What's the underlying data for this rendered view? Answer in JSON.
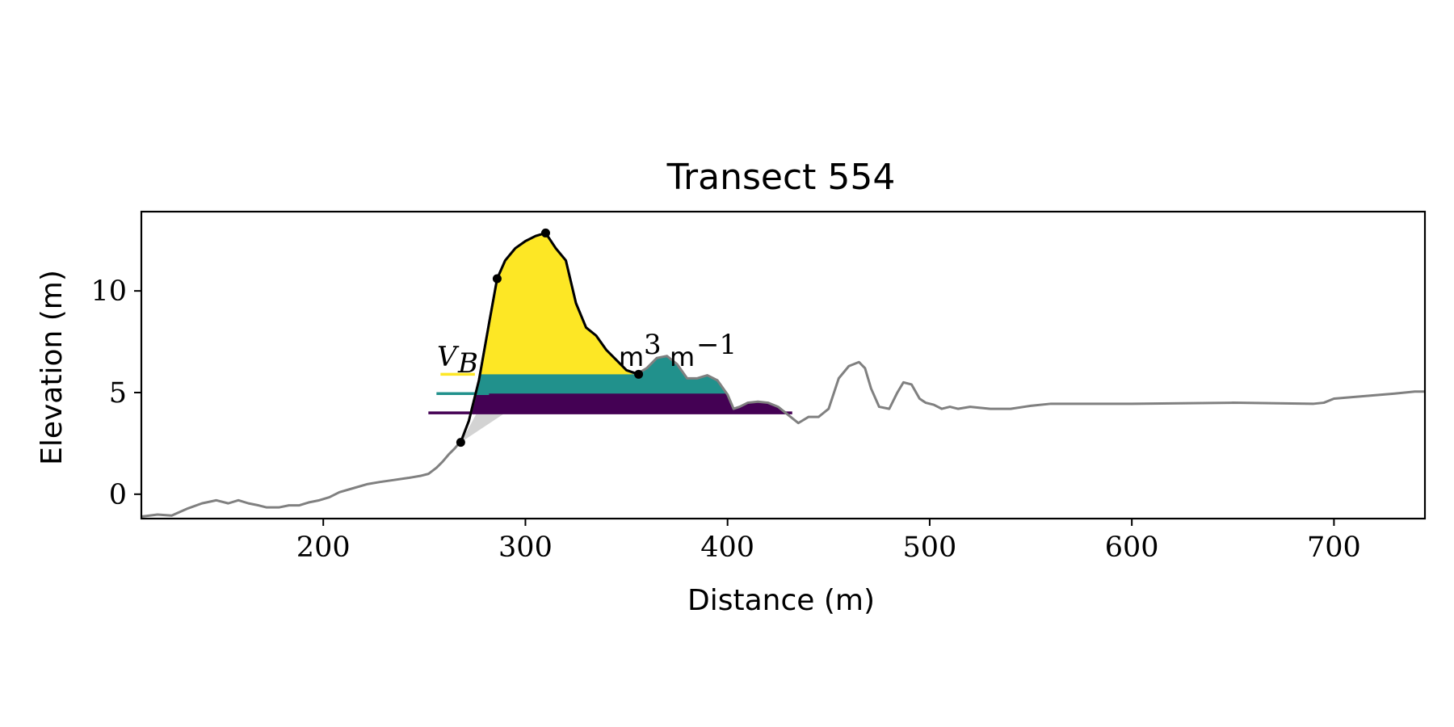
{
  "chart_data": {
    "type": "line",
    "title": "Transect 554",
    "xlabel": "Distance (m)",
    "ylabel": "Elevation (m)",
    "xlim": [
      110,
      745
    ],
    "ylim": [
      -1.2,
      13.9
    ],
    "xticks": [
      200,
      300,
      400,
      500,
      600,
      700
    ],
    "yticks": [
      0,
      5,
      10
    ],
    "grid": false,
    "colors": {
      "profile": "#808080",
      "dune_outline": "#000000",
      "toe_wedge": "#d3d3d3",
      "band_upper": "#fde725",
      "band_middle": "#21918c",
      "band_lower": "#440154"
    },
    "annotation": {
      "symbol": "V",
      "subscript": "B",
      "units_text": "m",
      "units_power_1": "3",
      "units_text_2": "m",
      "units_power_2": "−1"
    },
    "profile": {
      "x": [
        110,
        118,
        125,
        133,
        140,
        147,
        153,
        158,
        163,
        168,
        172,
        178,
        183,
        188,
        193,
        198,
        203,
        208,
        215,
        222,
        228,
        235,
        242,
        248,
        252,
        256,
        259,
        262,
        265,
        268,
        272,
        277,
        282,
        286,
        290,
        295,
        300,
        305,
        310,
        315,
        320,
        325,
        330,
        335,
        340,
        345,
        350,
        355,
        360,
        365,
        370,
        375,
        380,
        385,
        390,
        395,
        400,
        403,
        406,
        410,
        415,
        420,
        425,
        430,
        435,
        440,
        445,
        450,
        455,
        460,
        465,
        468,
        471,
        475,
        480,
        484,
        487,
        491,
        495,
        498,
        502,
        506,
        510,
        514,
        520,
        530,
        540,
        550,
        560,
        600,
        650,
        690,
        695,
        700,
        730,
        740,
        745
      ],
      "y": [
        -1.1,
        -1.0,
        -1.05,
        -0.7,
        -0.45,
        -0.3,
        -0.45,
        -0.3,
        -0.45,
        -0.55,
        -0.65,
        -0.65,
        -0.55,
        -0.55,
        -0.4,
        -0.3,
        -0.15,
        0.1,
        0.3,
        0.5,
        0.6,
        0.7,
        0.8,
        0.9,
        1.0,
        1.3,
        1.6,
        1.95,
        2.25,
        2.6,
        3.6,
        5.6,
        8.4,
        10.6,
        11.5,
        12.1,
        12.45,
        12.7,
        12.85,
        12.1,
        11.5,
        9.4,
        8.2,
        7.8,
        7.1,
        6.6,
        6.1,
        5.9,
        6.2,
        6.7,
        6.8,
        6.4,
        5.7,
        5.7,
        5.85,
        5.6,
        4.9,
        4.2,
        4.3,
        4.5,
        4.55,
        4.5,
        4.3,
        3.9,
        3.5,
        3.8,
        3.8,
        4.2,
        5.7,
        6.3,
        6.5,
        6.2,
        5.2,
        4.3,
        4.2,
        5.0,
        5.5,
        5.4,
        4.7,
        4.5,
        4.4,
        4.2,
        4.3,
        4.2,
        4.3,
        4.2,
        4.2,
        4.35,
        4.45,
        4.45,
        4.5,
        4.45,
        4.5,
        4.7,
        4.95,
        5.05,
        5.05
      ]
    },
    "dune_outline": {
      "x": [
        268,
        272,
        277,
        282,
        286,
        290,
        295,
        300,
        305,
        310,
        315,
        320,
        325,
        330,
        335,
        340,
        345,
        350,
        356
      ],
      "y": [
        2.55,
        3.6,
        5.6,
        8.4,
        10.6,
        11.5,
        12.1,
        12.45,
        12.7,
        12.85,
        12.1,
        11.5,
        9.4,
        8.2,
        7.8,
        7.1,
        6.6,
        6.1,
        5.9
      ]
    },
    "markers": {
      "x": [
        268,
        286,
        310,
        356
      ],
      "y": [
        2.55,
        10.6,
        12.85,
        5.9
      ]
    },
    "toe_wedge": {
      "x": [
        268,
        276,
        290
      ],
      "y": [
        2.55,
        4.0,
        4.0
      ]
    },
    "bands": [
      {
        "level": 5.9,
        "x_end": 356,
        "legend_x": [
          258,
          275
        ]
      },
      {
        "level": 4.95,
        "x_end": 403,
        "legend_x": [
          256,
          282
        ]
      },
      {
        "level": 4.0,
        "x_end": 432,
        "legend_x": [
          252,
          432
        ]
      }
    ]
  }
}
